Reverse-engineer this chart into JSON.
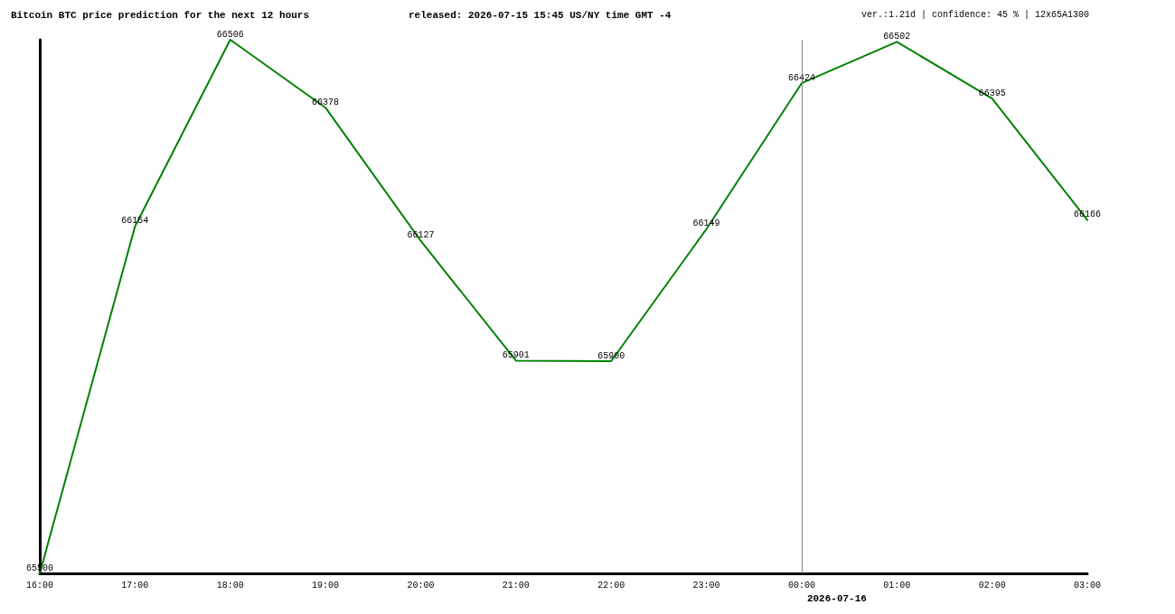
{
  "chart_data": {
    "type": "line",
    "title": "Bitcoin BTC price prediction for the next 12 hours",
    "subtitle": "released: 2026-07-15 15:45 US/NY time GMT -4",
    "annotations": [
      "ver.:1.21d | confidence: 45 % | 12x65A1300"
    ],
    "categories": [
      "16:00",
      "17:00",
      "18:00",
      "19:00",
      "20:00",
      "21:00",
      "22:00",
      "23:00",
      "00:00",
      "01:00",
      "02:00",
      "03:00"
    ],
    "values": [
      65500,
      66154,
      66506,
      66378,
      66127,
      65901,
      65900,
      66149,
      66424,
      66502,
      66395,
      66166
    ],
    "color": "#008000",
    "ylim": [
      65500,
      66506
    ],
    "tick_labels": "x",
    "data_labels": true,
    "marker": "none",
    "line_style": "solid",
    "ref_lines": [
      {
        "axis": "x",
        "value": "00:00",
        "label": "2026-07-16",
        "color": "#888888"
      }
    ]
  }
}
